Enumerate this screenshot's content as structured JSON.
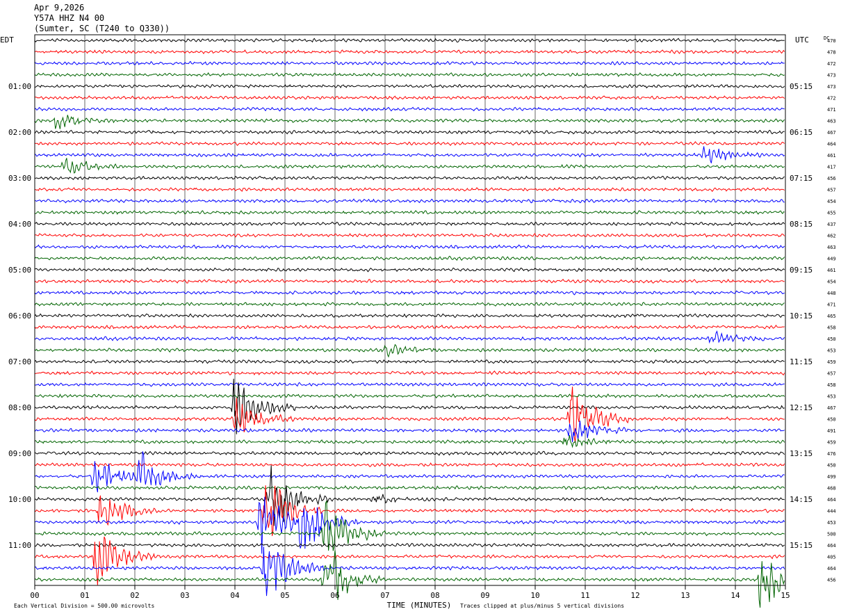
{
  "header": {
    "date": "Apr 9,2026",
    "station": "Y57A HHZ N4 00",
    "location": "(Sumter, SC (T240 to Q330))"
  },
  "left_axis_label": "EDT",
  "right_axis_label": "UTC",
  "dc_label": "DC",
  "footer": {
    "scale_note": "Each Vertical Division = 500.00 microvolts",
    "clip_note": "Traces clipped at plus/minus 5 vertical divisions"
  },
  "chart_data": {
    "type": "line",
    "title": "",
    "xlabel": "TIME (MINUTES)",
    "xlim": [
      0,
      15
    ],
    "x_ticks": [
      "00",
      "01",
      "02",
      "03",
      "04",
      "05",
      "06",
      "07",
      "08",
      "09",
      "10",
      "11",
      "12",
      "13",
      "14",
      "15"
    ],
    "rows_per_hour": 4,
    "row_minutes": 15,
    "trace_colors": [
      "#000000",
      "#ff0000",
      "#0000ff",
      "#006400"
    ],
    "left_time_labels": [
      {
        "row": 4,
        "text": "01:00"
      },
      {
        "row": 8,
        "text": "02:00"
      },
      {
        "row": 12,
        "text": "03:00"
      },
      {
        "row": 16,
        "text": "04:00"
      },
      {
        "row": 20,
        "text": "05:00"
      },
      {
        "row": 24,
        "text": "06:00"
      },
      {
        "row": 28,
        "text": "07:00"
      },
      {
        "row": 32,
        "text": "08:00"
      },
      {
        "row": 36,
        "text": "09:00"
      },
      {
        "row": 40,
        "text": "10:00"
      },
      {
        "row": 44,
        "text": "11:00"
      }
    ],
    "right_time_labels": [
      {
        "row": 4,
        "text": "05:15"
      },
      {
        "row": 8,
        "text": "06:15"
      },
      {
        "row": 12,
        "text": "07:15"
      },
      {
        "row": 16,
        "text": "08:15"
      },
      {
        "row": 20,
        "text": "09:15"
      },
      {
        "row": 24,
        "text": "10:15"
      },
      {
        "row": 28,
        "text": "11:15"
      },
      {
        "row": 32,
        "text": "12:15"
      },
      {
        "row": 36,
        "text": "13:15"
      },
      {
        "row": 40,
        "text": "14:15"
      },
      {
        "row": 44,
        "text": "15:15"
      }
    ],
    "dc_offsets": [
      470,
      478,
      472,
      473,
      473,
      472,
      471,
      463,
      467,
      464,
      461,
      417,
      456,
      457,
      454,
      455,
      437,
      462,
      463,
      449,
      461,
      454,
      448,
      471,
      465,
      458,
      450,
      453,
      459,
      457,
      458,
      453,
      467,
      450,
      491,
      459,
      476,
      450,
      499,
      468,
      464,
      444,
      453,
      500,
      464,
      405,
      464,
      456
    ],
    "events": [
      {
        "row": 7,
        "minute": 0.4,
        "amplitude": 1.2
      },
      {
        "row": 10,
        "minute": 13.4,
        "amplitude": 1.4
      },
      {
        "row": 11,
        "minute": 0.6,
        "amplitude": 1.3
      },
      {
        "row": 26,
        "minute": 13.5,
        "amplitude": 1.0
      },
      {
        "row": 27,
        "minute": 7.0,
        "amplitude": 0.8
      },
      {
        "row": 32,
        "minute": 4.0,
        "amplitude": 5.0
      },
      {
        "row": 33,
        "minute": 4.0,
        "amplitude": 3.0
      },
      {
        "row": 33,
        "minute": 10.7,
        "amplitude": 5.0
      },
      {
        "row": 34,
        "minute": 10.7,
        "amplitude": 2.0
      },
      {
        "row": 35,
        "minute": 10.6,
        "amplitude": 1.2
      },
      {
        "row": 38,
        "minute": 1.2,
        "amplitude": 3.0
      },
      {
        "row": 38,
        "minute": 2.1,
        "amplitude": 3.0
      },
      {
        "row": 40,
        "minute": 4.7,
        "amplitude": 5.0
      },
      {
        "row": 40,
        "minute": 6.7,
        "amplitude": 0.8
      },
      {
        "row": 41,
        "minute": 1.3,
        "amplitude": 3.0
      },
      {
        "row": 41,
        "minute": 4.6,
        "amplitude": 5.0
      },
      {
        "row": 42,
        "minute": 4.5,
        "amplitude": 5.0
      },
      {
        "row": 42,
        "minute": 5.3,
        "amplitude": 5.0
      },
      {
        "row": 43,
        "minute": 5.8,
        "amplitude": 5.0
      },
      {
        "row": 45,
        "minute": 1.2,
        "amplitude": 5.0
      },
      {
        "row": 46,
        "minute": 4.6,
        "amplitude": 5.0
      },
      {
        "row": 47,
        "minute": 5.8,
        "amplitude": 5.0
      },
      {
        "row": 47,
        "minute": 14.5,
        "amplitude": 4.0
      }
    ],
    "clip_divisions": 5
  }
}
